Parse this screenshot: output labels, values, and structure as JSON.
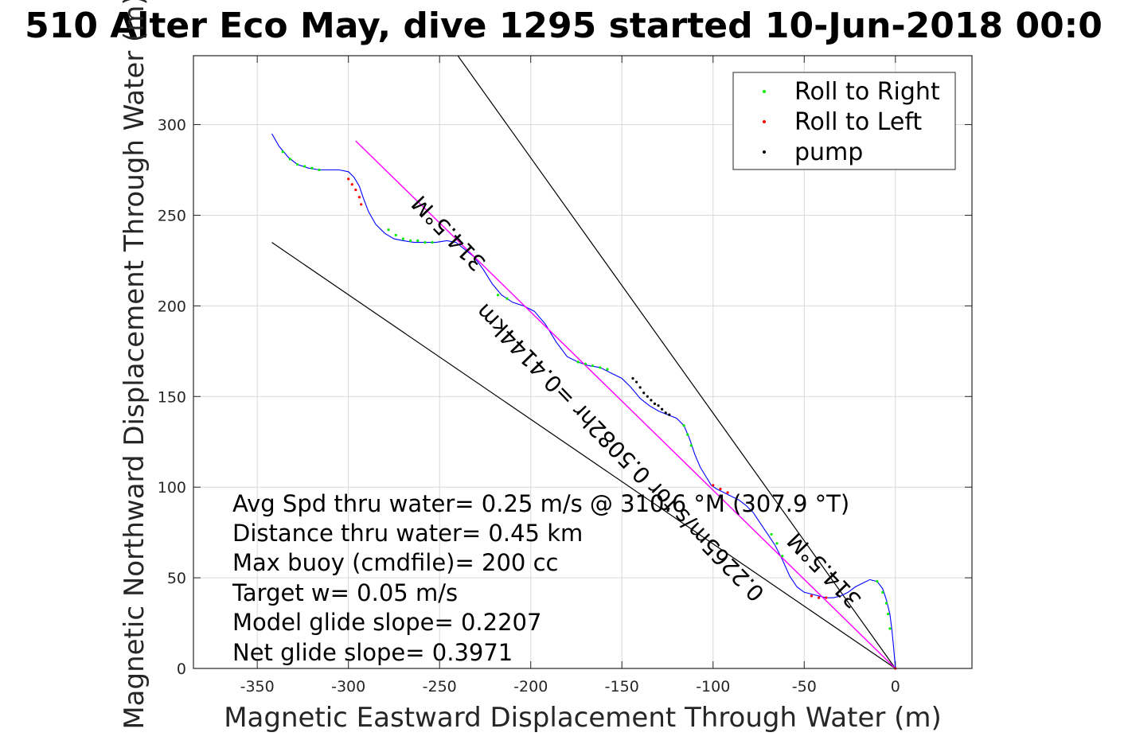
{
  "chart_data": {
    "type": "line",
    "title": "510 Alter Eco May, dive 1295 started 10-Jun-2018 00:0",
    "xlabel": "Magnetic Eastward Displacement Through Water (m)",
    "ylabel": "Magnetic Northward Displacement Through Water (m)",
    "xlim": [
      -385,
      42
    ],
    "ylim": [
      0,
      338
    ],
    "xticks": [
      -350,
      -300,
      -250,
      -200,
      -150,
      -100,
      -50,
      0
    ],
    "yticks": [
      0,
      50,
      100,
      150,
      200,
      250,
      300
    ],
    "grid": true,
    "legend_position": "top-right",
    "legend": [
      {
        "label": "Roll to Right",
        "color": "#00ee00"
      },
      {
        "label": "Roll to Left",
        "color": "#ff0000"
      },
      {
        "label": "pump",
        "color": "#000000"
      }
    ],
    "colors": {
      "track": "#0000ff",
      "net_line": "#ff00ff",
      "reference_lines": "#000000",
      "grid": "#d9d9d9"
    },
    "series": [
      {
        "name": "track",
        "x": [
          -342,
          -338,
          -333,
          -328,
          -322,
          -316,
          -310,
          -305,
          -300,
          -297,
          -294,
          -292,
          -289,
          -285,
          -280,
          -275,
          -270,
          -264,
          -258,
          -252,
          -246,
          -241,
          -236,
          -231,
          -226,
          -221,
          -216,
          -210,
          -204,
          -198,
          -192,
          -186,
          -180,
          -174,
          -168,
          -162,
          -156,
          -150,
          -145,
          -140,
          -135,
          -130,
          -125,
          -120,
          -116,
          -113,
          -110,
          -107,
          -104,
          -101,
          -98,
          -94,
          -90,
          -86,
          -82,
          -78,
          -74,
          -70,
          -66,
          -62,
          -58,
          -54,
          -50,
          -46,
          -42,
          -38,
          -34,
          -30,
          -26,
          -22,
          -18,
          -14,
          -10,
          -7,
          -5,
          -3,
          -2,
          -1,
          0
        ],
        "y": [
          295,
          288,
          282,
          278,
          276,
          275,
          275,
          275,
          274,
          271,
          266,
          260,
          252,
          245,
          240,
          237,
          236,
          235,
          235,
          235,
          236,
          235,
          231,
          227,
          220,
          212,
          206,
          202,
          200,
          197,
          190,
          180,
          172,
          169,
          167,
          166,
          163,
          160,
          155,
          149,
          145,
          142,
          140,
          138,
          134,
          127,
          118,
          111,
          106,
          101,
          99,
          97,
          95,
          93,
          90,
          86,
          80,
          74,
          68,
          60,
          51,
          45,
          42,
          41,
          40,
          39,
          39,
          40,
          42,
          45,
          47,
          49,
          48,
          44,
          38,
          30,
          22,
          12,
          0
        ]
      },
      {
        "name": "net",
        "x": [
          -296,
          0
        ],
        "y": [
          291,
          0
        ]
      }
    ],
    "reference_lines": [
      {
        "x": [
          -240,
          0
        ],
        "y": [
          338,
          0
        ]
      },
      {
        "x": [
          -342,
          0
        ],
        "y": [
          235,
          0
        ]
      }
    ],
    "roll_right_points": [
      {
        "x": -336,
        "y": 285
      },
      {
        "x": -332,
        "y": 281
      },
      {
        "x": -328,
        "y": 278
      },
      {
        "x": -324,
        "y": 277
      },
      {
        "x": -320,
        "y": 276
      },
      {
        "x": -316,
        "y": 275
      },
      {
        "x": -278,
        "y": 242
      },
      {
        "x": -274,
        "y": 239
      },
      {
        "x": -270,
        "y": 237
      },
      {
        "x": -266,
        "y": 236
      },
      {
        "x": -262,
        "y": 236
      },
      {
        "x": -258,
        "y": 235
      },
      {
        "x": -254,
        "y": 235
      },
      {
        "x": -218,
        "y": 206
      },
      {
        "x": -213,
        "y": 204
      },
      {
        "x": -174,
        "y": 169
      },
      {
        "x": -170,
        "y": 168
      },
      {
        "x": -166,
        "y": 167
      },
      {
        "x": -162,
        "y": 166
      },
      {
        "x": -158,
        "y": 165
      },
      {
        "x": -116,
        "y": 134
      },
      {
        "x": -114,
        "y": 129
      },
      {
        "x": -112,
        "y": 123
      },
      {
        "x": -68,
        "y": 74
      },
      {
        "x": -65,
        "y": 69
      },
      {
        "x": -62,
        "y": 62
      },
      {
        "x": -10,
        "y": 48
      },
      {
        "x": -7,
        "y": 42
      },
      {
        "x": -5,
        "y": 36
      },
      {
        "x": -4,
        "y": 30
      },
      {
        "x": -3,
        "y": 22
      }
    ],
    "roll_left_points": [
      {
        "x": -300,
        "y": 270
      },
      {
        "x": -298,
        "y": 267
      },
      {
        "x": -296,
        "y": 264
      },
      {
        "x": -294,
        "y": 260
      },
      {
        "x": -293,
        "y": 256
      },
      {
        "x": -100,
        "y": 101
      },
      {
        "x": -96,
        "y": 99
      },
      {
        "x": -92,
        "y": 97
      },
      {
        "x": -46,
        "y": 40
      },
      {
        "x": -42,
        "y": 39
      },
      {
        "x": -38,
        "y": 39
      },
      {
        "x": 0,
        "y": 0
      }
    ],
    "pump_points": [
      {
        "x": -144,
        "y": 160
      },
      {
        "x": -142,
        "y": 158
      },
      {
        "x": -140,
        "y": 155
      },
      {
        "x": -138,
        "y": 152
      },
      {
        "x": -136,
        "y": 150
      },
      {
        "x": -134,
        "y": 148
      },
      {
        "x": -132,
        "y": 146
      },
      {
        "x": -130,
        "y": 145
      },
      {
        "x": -128,
        "y": 143
      },
      {
        "x": -126,
        "y": 141
      },
      {
        "x": -124,
        "y": 140
      }
    ],
    "rotated_labels": [
      {
        "text": "314.5°M",
        "x": -242,
        "y": 243,
        "angle_deg": 226
      },
      {
        "text": "0.2265m/s for 0.5082hr =0.4144km",
        "x": -148,
        "y": 122,
        "angle_deg": 226
      },
      {
        "text": "314.5°M",
        "x": -36,
        "y": 57,
        "angle_deg": 226
      }
    ],
    "annotations": [
      "Avg Spd thru water=  0.25 m/s @ 310.6 °M (307.9 °T)",
      "Distance thru water=  0.45 km",
      "Max buoy (cmdfile)= 200 cc",
      "Target w= 0.05 m/s",
      "Model glide slope= 0.2207",
      "Net glide slope= 0.3971"
    ]
  }
}
